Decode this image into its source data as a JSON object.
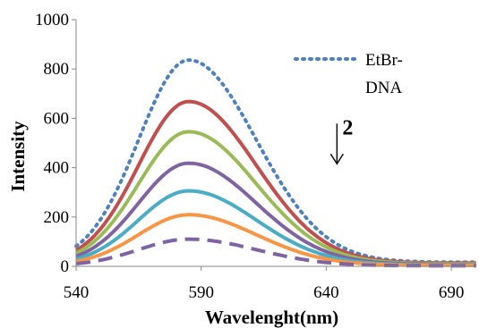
{
  "chart_data": {
    "type": "line",
    "title": "",
    "xlabel": "Wavelenght(nm)",
    "ylabel": "Intensity",
    "xlim": [
      540,
      700
    ],
    "ylim": [
      0,
      1000
    ],
    "xticks": [
      540,
      590,
      640,
      690
    ],
    "yticks": [
      0,
      200,
      400,
      600,
      800,
      1000
    ],
    "grid": false,
    "legend": {
      "placement": "top-right",
      "entries": [
        "EtBr-DNA"
      ]
    },
    "annotation": {
      "text": "2",
      "arrow": "down",
      "x": 645,
      "y": 470
    },
    "series": [
      {
        "name": "EtBr-DNA",
        "color": "#4f81bd",
        "dash": "dotted",
        "peak_x": 585,
        "peak_y": 820,
        "sigma_left": 20,
        "sigma_right": 27
      },
      {
        "color": "#c0504d",
        "dash": "solid",
        "peak_x": 585,
        "peak_y": 655,
        "sigma_left": 20,
        "sigma_right": 27
      },
      {
        "color": "#9bbb59",
        "dash": "solid",
        "peak_x": 585,
        "peak_y": 535,
        "sigma_left": 20,
        "sigma_right": 27
      },
      {
        "color": "#8064a2",
        "dash": "solid",
        "peak_x": 585,
        "peak_y": 410,
        "sigma_left": 20,
        "sigma_right": 27
      },
      {
        "color": "#4bacc6",
        "dash": "solid",
        "peak_x": 585,
        "peak_y": 300,
        "sigma_left": 20,
        "sigma_right": 27
      },
      {
        "color": "#f79646",
        "dash": "solid",
        "peak_x": 585,
        "peak_y": 205,
        "sigma_left": 20,
        "sigma_right": 27
      },
      {
        "color": "#8064a2",
        "dash": "dashed",
        "peak_x": 585,
        "peak_y": 108,
        "sigma_left": 20,
        "sigma_right": 27
      }
    ]
  }
}
